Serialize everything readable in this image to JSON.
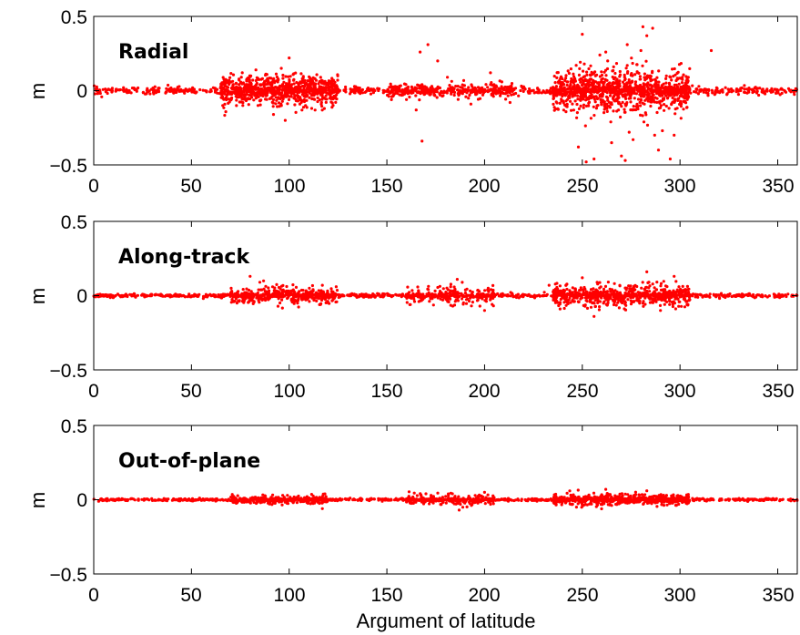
{
  "chart_data": {
    "type": "scatter",
    "colors": {
      "marker": "#ff0000",
      "axes": "#000000",
      "background": "#ffffff"
    },
    "xlabel": "Argument of latitude",
    "xlim": [
      0,
      360
    ],
    "xticks": [
      "0",
      "50",
      "100",
      "150",
      "200",
      "250",
      "300",
      "350"
    ],
    "xtick_values": [
      0,
      50,
      100,
      150,
      200,
      250,
      300,
      350
    ],
    "grid": false,
    "panels": [
      {
        "title": "Radial",
        "ylabel": "m",
        "ylim": [
          -0.5,
          0.5
        ],
        "yticks": [
          "0.5",
          "0",
          "−0.5"
        ],
        "ytick_values": [
          0.5,
          0,
          -0.5
        ],
        "series": [
          {
            "x": [
              167,
              171,
              168,
              316,
              250,
              262,
              273,
              281,
              283,
              286,
              280,
              252,
              272,
              270,
              256,
              295,
              248,
              265,
              289,
              276,
              287,
              274,
              259,
              263,
              251,
              266,
              291,
              297,
              100,
              98,
              83,
              92,
              76,
              118,
              66,
              96,
              181,
              176,
              193,
              203,
              213,
              160,
              165
            ],
            "y": [
              0.26,
              0.31,
              -0.34,
              0.27,
              0.38,
              0.26,
              0.31,
              0.43,
              0.37,
              0.42,
              0.27,
              -0.48,
              -0.47,
              -0.44,
              -0.46,
              -0.46,
              -0.38,
              -0.35,
              -0.4,
              -0.33,
              -0.3,
              -0.28,
              0.24,
              0.2,
              0.18,
              0.16,
              -0.27,
              -0.3,
              0.22,
              -0.2,
              0.14,
              -0.16,
              0.12,
              -0.12,
              -0.1,
              0.15,
              0.09,
              0.2,
              -0.09,
              0.12,
              -0.08,
              -0.06,
              -0.13
            ]
          }
        ],
        "clusters": [
          {
            "x_range": [
              0,
              360
            ],
            "spread": 0.012,
            "count": 900
          },
          {
            "x_range": [
              65,
              125
            ],
            "spread": 0.05,
            "count": 700
          },
          {
            "x_range": [
              150,
              215
            ],
            "spread": 0.025,
            "count": 250
          },
          {
            "x_range": [
              235,
              305
            ],
            "spread": 0.07,
            "count": 900
          }
        ]
      },
      {
        "title": "Along-track",
        "ylabel": "m",
        "ylim": [
          -0.5,
          0.5
        ],
        "yticks": [
          "0.5",
          "0",
          "−0.5"
        ],
        "ytick_values": [
          0.5,
          0,
          -0.5
        ],
        "series": [
          {
            "x": [
              80,
              85,
              117,
              186,
              200,
              250,
              256,
              283,
              297,
              290,
              233,
              162
            ],
            "y": [
              0.13,
              0.09,
              0.07,
              0.11,
              -0.1,
              0.12,
              -0.14,
              0.16,
              0.13,
              -0.1,
              0.07,
              -0.06
            ]
          }
        ],
        "clusters": [
          {
            "x_range": [
              0,
              360
            ],
            "spread": 0.006,
            "count": 900
          },
          {
            "x_range": [
              70,
              125
            ],
            "spread": 0.03,
            "count": 350
          },
          {
            "x_range": [
              160,
              205
            ],
            "spread": 0.03,
            "count": 200
          },
          {
            "x_range": [
              235,
              305
            ],
            "spread": 0.035,
            "count": 600
          }
        ]
      },
      {
        "title": "Out-of-plane",
        "ylabel": "m",
        "ylim": [
          -0.5,
          0.5
        ],
        "yticks": [
          "0.5",
          "0",
          "−0.5"
        ],
        "ytick_values": [
          0.5,
          0,
          -0.5
        ],
        "series": [
          {
            "x": [
              117,
              187,
              200,
              262,
              283,
              247,
              170
            ],
            "y": [
              -0.06,
              -0.07,
              0.05,
              0.07,
              0.06,
              -0.05,
              0.04
            ]
          }
        ],
        "clusters": [
          {
            "x_range": [
              0,
              360
            ],
            "spread": 0.004,
            "count": 900
          },
          {
            "x_range": [
              70,
              120
            ],
            "spread": 0.015,
            "count": 250
          },
          {
            "x_range": [
              160,
              205
            ],
            "spread": 0.018,
            "count": 200
          },
          {
            "x_range": [
              235,
              305
            ],
            "spread": 0.018,
            "count": 500
          }
        ]
      }
    ]
  }
}
